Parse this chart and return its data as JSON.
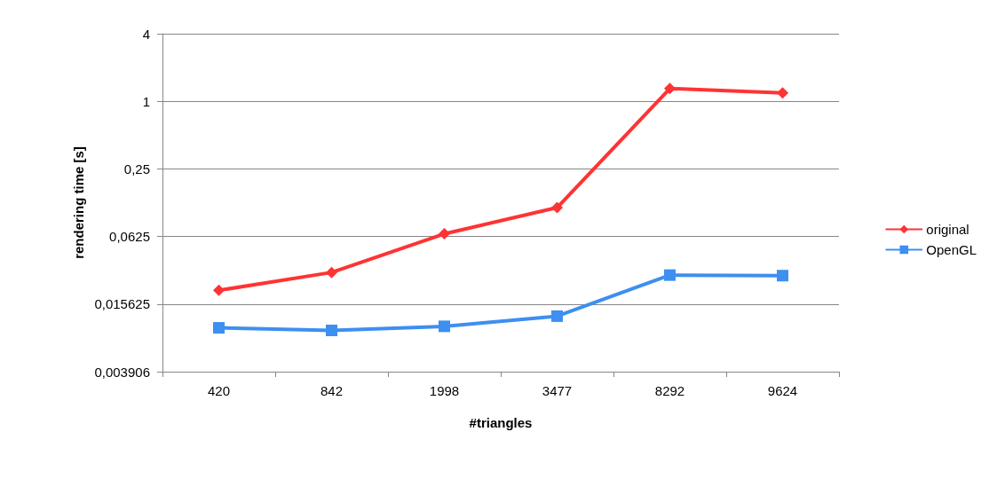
{
  "chart_data": {
    "type": "line",
    "xlabel": "#triangles",
    "ylabel": "rendering time [s]",
    "categories": [
      "420",
      "842",
      "1998",
      "3477",
      "8292",
      "9624"
    ],
    "series": [
      {
        "name": "original",
        "color": "#ff3333",
        "marker": "diamond",
        "values": [
          0.0207,
          0.0299,
          0.066,
          0.113,
          1.3,
          1.19
        ]
      },
      {
        "name": "OpenGL",
        "color": "#3d8ff0",
        "marker": "square",
        "values": [
          0.0096,
          0.0091,
          0.0099,
          0.0122,
          0.0283,
          0.028
        ]
      }
    ],
    "log": "y",
    "ylim": [
      0.00390625,
      4
    ],
    "yticks": [
      {
        "value": 0.00390625,
        "label": "0,003906"
      },
      {
        "value": 0.015625,
        "label": "0,015625"
      },
      {
        "value": 0.0625,
        "label": "0,0625"
      },
      {
        "value": 0.25,
        "label": "0,25"
      },
      1,
      4
    ],
    "grid": "y",
    "legend": "right",
    "line_style": "solid"
  }
}
